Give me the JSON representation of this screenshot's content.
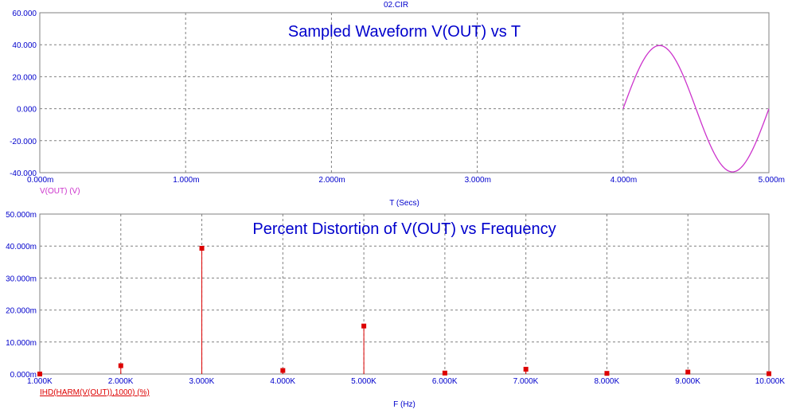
{
  "window_title": "02.CIR",
  "colors": {
    "text": "#0000cc",
    "wave": "#cc33cc",
    "bars": "#dd0000",
    "grid": "#808080"
  },
  "chart_data": [
    {
      "type": "line",
      "title": "Sampled Waveform  V(OUT) vs T",
      "xlabel": "T (Secs)",
      "legend": "V(OUT) (V)",
      "xlim": [
        0,
        5.0
      ],
      "ylim": [
        -40,
        60
      ],
      "x_ticks": [
        "0.000m",
        "1.000m",
        "2.000m",
        "3.000m",
        "4.000m",
        "5.000m"
      ],
      "y_ticks": [
        "60.000",
        "40.000",
        "20.000",
        "0.000",
        "-20.000",
        "-40.000"
      ],
      "x_tick_values": [
        0,
        1,
        2,
        3,
        4,
        5
      ],
      "y_tick_values": [
        60,
        40,
        20,
        0,
        -20,
        -40
      ],
      "series": [
        {
          "x": [
            4.0,
            4.05,
            4.1,
            4.15,
            4.2,
            4.25,
            4.3,
            4.35,
            4.4,
            4.45,
            4.5,
            4.55,
            4.6,
            4.65,
            4.7,
            4.75,
            4.8,
            4.85,
            4.9,
            4.95,
            5.0
          ],
          "y": [
            0,
            12.2,
            23.2,
            31.9,
            37.5,
            39.5,
            37.5,
            31.9,
            23.2,
            12.2,
            0,
            -12.2,
            -23.2,
            -31.9,
            -37.5,
            -39.5,
            -37.5,
            -31.9,
            -23.2,
            -12.2,
            0
          ]
        }
      ]
    },
    {
      "type": "bar",
      "title": "Percent Distortion of V(OUT) vs Frequency",
      "xlabel": "F (Hz)",
      "legend": "IHD(HARM(V(OUT)),1000) (%)",
      "xlim": [
        1.0,
        10.0
      ],
      "ylim": [
        0,
        50
      ],
      "x_ticks": [
        "1.000K",
        "2.000K",
        "3.000K",
        "4.000K",
        "5.000K",
        "6.000K",
        "7.000K",
        "8.000K",
        "9.000K",
        "10.000K"
      ],
      "y_ticks": [
        "50.000m",
        "40.000m",
        "30.000m",
        "20.000m",
        "10.000m",
        "0.000m"
      ],
      "x_tick_values": [
        1,
        2,
        3,
        4,
        5,
        6,
        7,
        8,
        9,
        10
      ],
      "y_tick_values": [
        50,
        40,
        30,
        20,
        10,
        0
      ],
      "x": [
        1,
        2,
        3,
        4,
        5,
        6,
        7,
        8,
        9,
        10
      ],
      "values": [
        0,
        2.6,
        39.3,
        1.1,
        15.0,
        0.3,
        1.5,
        0.2,
        0.6,
        0.1
      ]
    }
  ]
}
